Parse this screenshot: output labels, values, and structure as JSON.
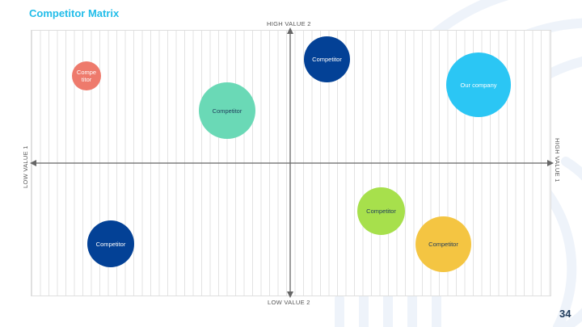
{
  "slide": {
    "title": "Competitor Matrix",
    "page_number": "34"
  },
  "axes": {
    "top": "HIGH VALUE 2",
    "bottom": "LOW VALUE 2",
    "left": "LOW VALUE 1",
    "right": "HIGH VALUE 1"
  },
  "bubbles": [
    {
      "label": "Compe\ntitor",
      "color": "#ee7a6c",
      "text_color": "#ffffff"
    },
    {
      "label": "Competitor",
      "color": "#6ad9b6",
      "text_color": "#1f3b5b"
    },
    {
      "label": "Competitor",
      "color": "#034196",
      "text_color": "#ffffff"
    },
    {
      "label": "Our company",
      "color": "#2bc6f4",
      "text_color": "#ffffff"
    },
    {
      "label": "Competitor",
      "color": "#034196",
      "text_color": "#ffffff"
    },
    {
      "label": "Competitor",
      "color": "#a7e04c",
      "text_color": "#1f3b5b"
    },
    {
      "label": "Competitor",
      "color": "#f4c542",
      "text_color": "#1f3b5b"
    }
  ]
}
